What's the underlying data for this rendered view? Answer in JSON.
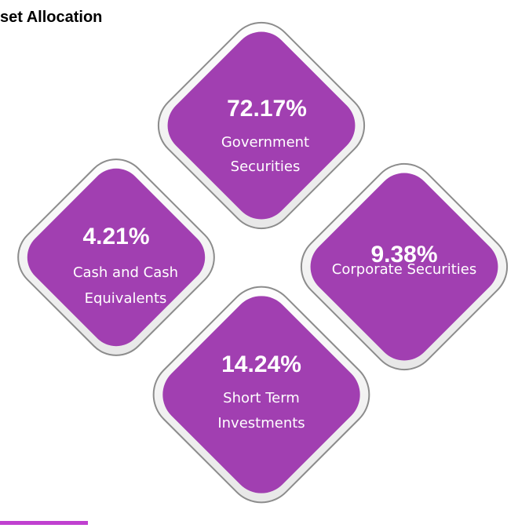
{
  "title": "set Allocation",
  "nodes": [
    {
      "value": "72.17%",
      "label": [
        "Government",
        "Securities"
      ]
    },
    {
      "value": "4.21%",
      "label": [
        "Cash and Cash",
        "Equivalents"
      ]
    },
    {
      "value": "9.38%",
      "label": [
        "Corporate Securities"
      ]
    },
    {
      "value": "14.24%",
      "label": [
        "Short Term",
        "Investments"
      ]
    }
  ]
}
